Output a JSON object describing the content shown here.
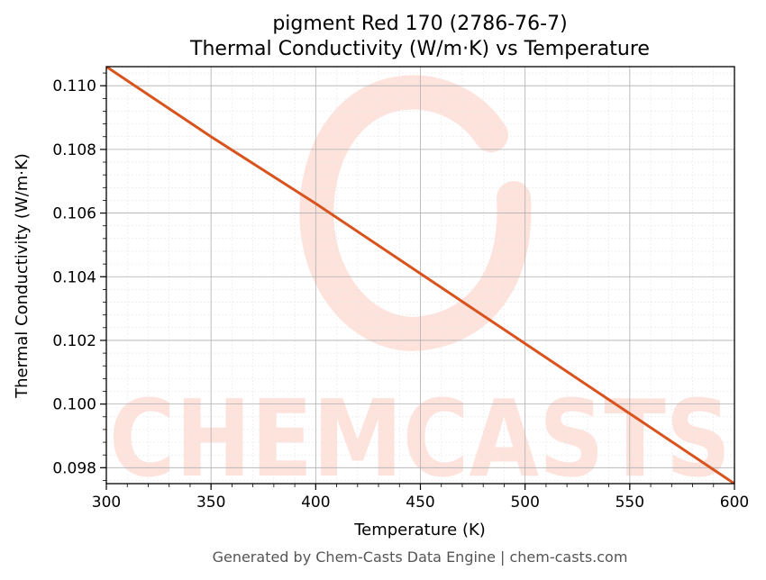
{
  "chart_data": {
    "type": "line",
    "title_line1": "pigment Red 170 (2786-76-7)",
    "title_line2": "Thermal Conductivity (W/m·K) vs Temperature",
    "xlabel": "Temperature (K)",
    "ylabel": "Thermal Conductivity (W/m·K)",
    "xlim": [
      300,
      600
    ],
    "ylim": [
      0.0975,
      0.1106
    ],
    "x_ticks": [
      300,
      350,
      400,
      450,
      500,
      550,
      600
    ],
    "y_ticks": [
      0.098,
      0.1,
      0.102,
      0.104,
      0.106,
      0.108,
      0.11
    ],
    "x_minor_step": 10,
    "y_minor_step": 0.0004,
    "grid": true,
    "series": [
      {
        "color": "#d9531e",
        "x": [
          300,
          350,
          400,
          450,
          500,
          550,
          600
        ],
        "y": [
          0.1106,
          0.1084,
          0.1063,
          0.1041,
          0.1019,
          0.0997,
          0.0975
        ]
      }
    ]
  },
  "watermark": {
    "text": "CHEMCASTS",
    "color": "#fde3dc"
  },
  "footer": "Generated by Chem-Casts Data Engine | chem-casts.com"
}
